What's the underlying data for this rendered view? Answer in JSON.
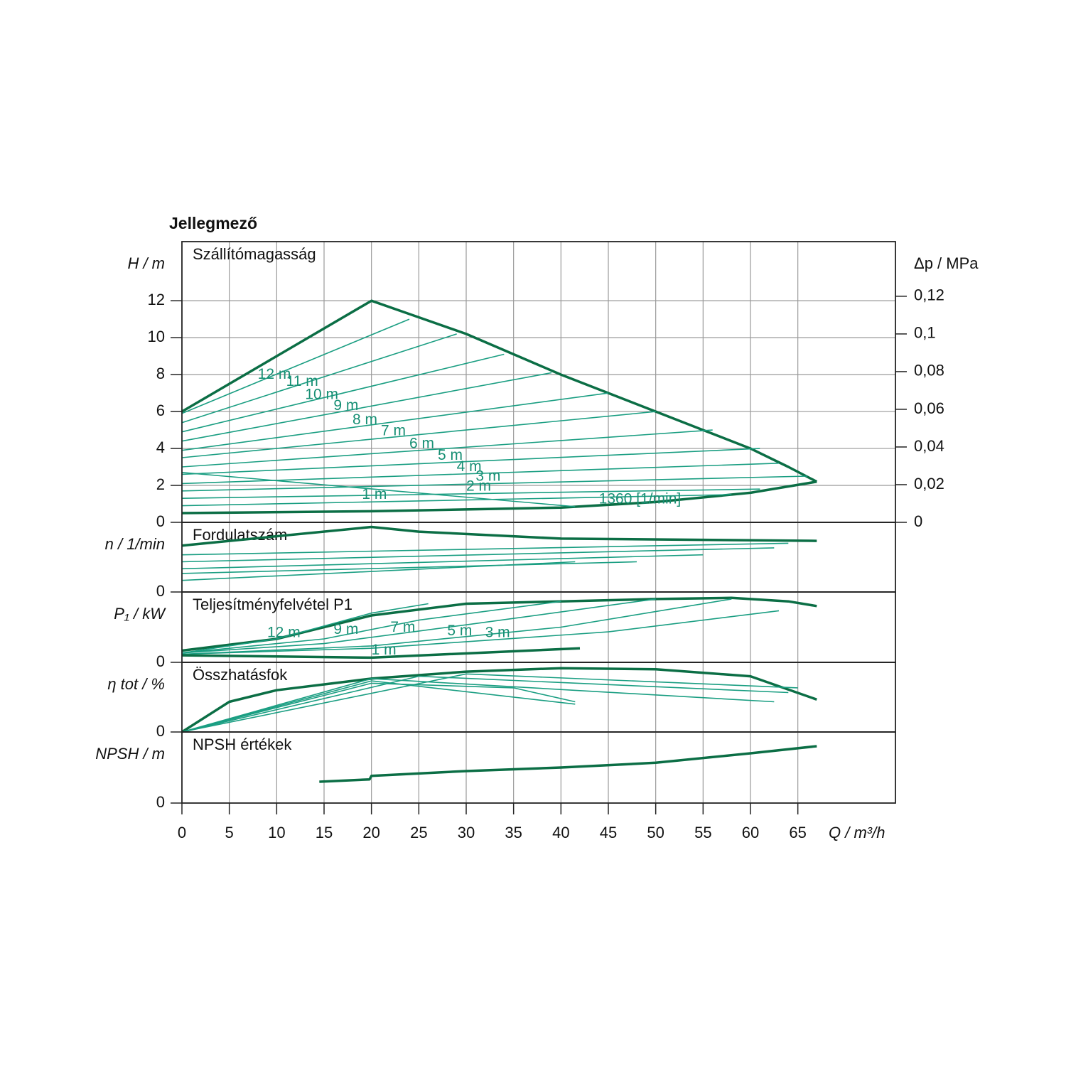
{
  "chart_data": [
    {
      "type": "line",
      "title": "Jellegmező",
      "panel_title": "Szállítómagasság",
      "y_label": "H / m",
      "ylim": [
        0,
        15.2
      ],
      "yticks": [
        0,
        2,
        4,
        6,
        8,
        10,
        12
      ],
      "grid": true,
      "y2_label": "Δp / MPa",
      "y2lim": [
        0,
        0.149
      ],
      "y2ticks": [
        0,
        {
          "value": 0.02,
          "label": "0,02"
        },
        {
          "value": 0.04,
          "label": "0,04"
        },
        {
          "value": 0.06,
          "label": "0,06"
        },
        {
          "value": 0.08,
          "label": "0,08"
        },
        {
          "value": 0.1,
          "label": "0,1"
        },
        {
          "value": 0.12,
          "label": "0,12"
        }
      ],
      "series": [
        {
          "color": "#0b6e45",
          "x": [
            0,
            20,
            25,
            30,
            35,
            40,
            45,
            50,
            55,
            60,
            64,
            67
          ],
          "values": [
            6,
            12,
            11.1,
            10.2,
            9.1,
            8.0,
            7.0,
            6.0,
            5.0,
            4.0,
            3.0,
            2.2
          ]
        },
        {
          "color": "#0b6e45",
          "x": [
            0,
            20,
            40,
            50,
            60,
            67
          ],
          "values": [
            0.5,
            0.6,
            0.8,
            1.1,
            1.6,
            2.2
          ]
        },
        {
          "name": "12 m",
          "color": "#1a9e82",
          "x": [
            0,
            24
          ],
          "values": [
            5.9,
            11.0
          ]
        },
        {
          "name": "11 m",
          "color": "#1a9e82",
          "x": [
            0,
            29
          ],
          "values": [
            5.4,
            10.2
          ]
        },
        {
          "name": "10 m",
          "color": "#1a9e82",
          "x": [
            0,
            34
          ],
          "values": [
            4.9,
            9.1
          ]
        },
        {
          "name": "9 m",
          "color": "#1a9e82",
          "x": [
            0,
            39
          ],
          "values": [
            4.4,
            8.1
          ]
        },
        {
          "name": "8 m",
          "color": "#1a9e82",
          "x": [
            0,
            45
          ],
          "values": [
            3.9,
            7.0
          ]
        },
        {
          "name": "7 m",
          "color": "#1a9e82",
          "x": [
            0,
            50
          ],
          "values": [
            3.5,
            6.0
          ]
        },
        {
          "name": "6 m",
          "color": "#1a9e82",
          "x": [
            0,
            56
          ],
          "values": [
            3.0,
            5.0
          ]
        },
        {
          "name": "5 m",
          "color": "#1a9e82",
          "x": [
            0,
            61
          ],
          "values": [
            2.6,
            4.0
          ]
        },
        {
          "name": "4 m",
          "color": "#1a9e82",
          "x": [
            0,
            63
          ],
          "values": [
            2.1,
            3.2
          ]
        },
        {
          "name": "3 m",
          "color": "#1a9e82",
          "x": [
            0,
            66
          ],
          "values": [
            1.7,
            2.5
          ]
        },
        {
          "name": "2 m",
          "color": "#1a9e82",
          "x": [
            0,
            61
          ],
          "values": [
            1.3,
            1.8
          ]
        },
        {
          "name": "1 m",
          "color": "#1a9e82",
          "x": [
            0,
            58
          ],
          "values": [
            0.9,
            1.5
          ]
        },
        {
          "name": "1360 [1/min]",
          "color": "#1a9e82",
          "x": [
            0,
            41.5
          ],
          "values": [
            2.7,
            0.85
          ]
        }
      ]
    },
    {
      "type": "line",
      "panel_title": "Fordulatszám",
      "y_label": "n / 1/min",
      "ylim": [
        0,
        3
      ],
      "yticks": [
        0
      ],
      "series": [
        {
          "color": "#0b6e45",
          "x": [
            0,
            20,
            25,
            40,
            67
          ],
          "values": [
            2.0,
            2.8,
            2.6,
            2.3,
            2.2
          ]
        },
        {
          "color": "#1a9e82",
          "x": [
            0,
            64
          ],
          "values": [
            1.6,
            2.1
          ]
        },
        {
          "color": "#1a9e82",
          "x": [
            0,
            62.5
          ],
          "values": [
            1.3,
            1.9
          ]
        },
        {
          "color": "#1a9e82",
          "x": [
            0,
            55
          ],
          "values": [
            1.0,
            1.6
          ]
        },
        {
          "color": "#1a9e82",
          "x": [
            0,
            48
          ],
          "values": [
            0.8,
            1.3
          ]
        },
        {
          "color": "#1a9e82",
          "x": [
            0,
            41.5
          ],
          "values": [
            0.5,
            1.3
          ]
        }
      ]
    },
    {
      "type": "line",
      "panel_title": "Teljesítményfelvétel P1",
      "y_label": "P₁ / kW",
      "ylim": [
        0,
        3
      ],
      "yticks": [
        0
      ],
      "series": [
        {
          "color": "#0b6e45",
          "x": [
            0,
            10,
            20,
            30,
            40,
            50,
            58,
            64,
            67
          ],
          "values": [
            0.5,
            1.0,
            2.0,
            2.5,
            2.6,
            2.7,
            2.75,
            2.6,
            2.4
          ]
        },
        {
          "name": "12 m",
          "color": "#1a9e82",
          "x": [
            0,
            10,
            20,
            26
          ],
          "values": [
            0.4,
            1.0,
            2.1,
            2.5
          ]
        },
        {
          "name": "9 m",
          "color": "#1a9e82",
          "x": [
            0,
            15,
            25,
            40
          ],
          "values": [
            0.4,
            1.0,
            1.8,
            2.6
          ]
        },
        {
          "name": "7 m",
          "color": "#1a9e82",
          "x": [
            0,
            15,
            30,
            50
          ],
          "values": [
            0.4,
            0.8,
            1.6,
            2.7
          ]
        },
        {
          "name": "5 m",
          "color": "#1a9e82",
          "x": [
            0,
            20,
            40,
            58
          ],
          "values": [
            0.35,
            0.7,
            1.5,
            2.7
          ]
        },
        {
          "name": "3 m",
          "color": "#1a9e82",
          "x": [
            0,
            20,
            45,
            63
          ],
          "values": [
            0.35,
            0.6,
            1.3,
            2.2
          ]
        },
        {
          "name": "1 m",
          "color": "#0b6e45",
          "x": [
            0,
            20,
            42
          ],
          "values": [
            0.3,
            0.2,
            0.6
          ]
        }
      ]
    },
    {
      "type": "line",
      "panel_title": "Összhatásfok",
      "y_label": "η tot / %",
      "ylim": [
        0,
        3
      ],
      "yticks": [
        0
      ],
      "series": [
        {
          "color": "#0b6e45",
          "x": [
            0,
            5,
            10,
            20,
            30,
            40,
            50,
            60,
            67
          ],
          "values": [
            0,
            1.3,
            1.8,
            2.3,
            2.6,
            2.75,
            2.7,
            2.4,
            1.4
          ]
        },
        {
          "color": "#1a9e82",
          "x": [
            0,
            20,
            41.5
          ],
          "values": [
            0,
            2.2,
            1.2
          ]
        },
        {
          "color": "#1a9e82",
          "x": [
            0,
            20,
            35,
            41.5
          ],
          "values": [
            0,
            2.1,
            1.9,
            1.3
          ]
        },
        {
          "color": "#1a9e82",
          "x": [
            0,
            20,
            62.5
          ],
          "values": [
            0,
            2.3,
            1.3
          ]
        },
        {
          "color": "#1a9e82",
          "x": [
            0,
            25,
            64
          ],
          "values": [
            0,
            2.4,
            1.7
          ]
        },
        {
          "color": "#1a9e82",
          "x": [
            0,
            30,
            65
          ],
          "values": [
            0,
            2.5,
            1.9
          ]
        }
      ]
    },
    {
      "type": "line",
      "panel_title": "NPSH értékek",
      "y_label": "NPSH / m",
      "ylim": [
        0,
        3
      ],
      "yticks": [
        0
      ],
      "x_label": "Q / m³/h",
      "xlim": [
        0,
        75.3
      ],
      "xticks": [
        0,
        5,
        10,
        15,
        20,
        25,
        30,
        35,
        40,
        45,
        50,
        55,
        60,
        65
      ],
      "series": [
        {
          "color": "#0b6e45",
          "x": [
            14.5,
            19.8,
            20,
            30,
            40,
            50,
            60,
            67
          ],
          "values": [
            0.9,
            1.0,
            1.15,
            1.35,
            1.5,
            1.7,
            2.1,
            2.4
          ]
        }
      ]
    }
  ]
}
